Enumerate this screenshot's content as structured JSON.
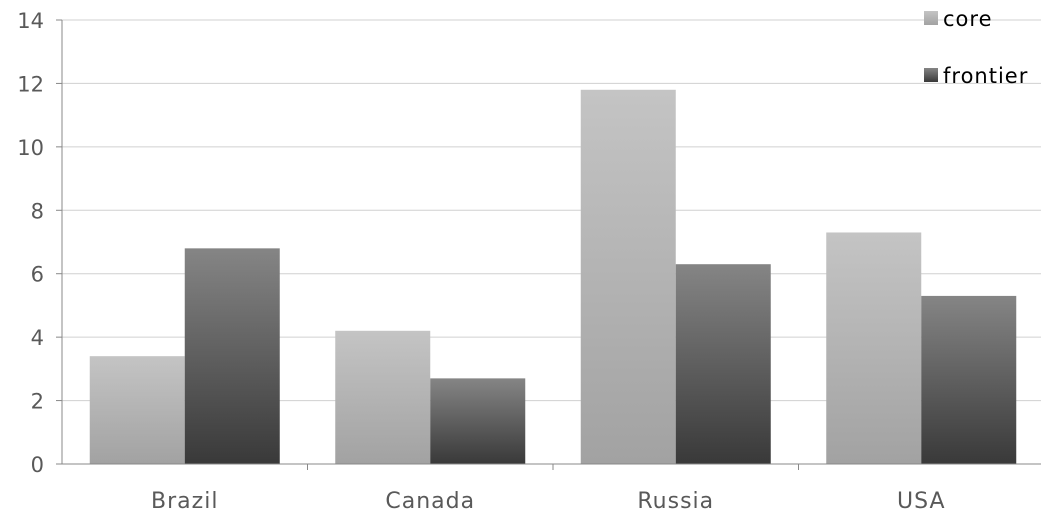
{
  "chart_data": {
    "type": "bar",
    "categories": [
      "Brazil",
      "Canada",
      "Russia",
      "USA"
    ],
    "series": [
      {
        "name": "core",
        "values": [
          3.4,
          4.2,
          11.8,
          7.3
        ],
        "color": "#b3b3b3"
      },
      {
        "name": "frontier",
        "values": [
          6.8,
          2.7,
          6.3,
          5.3
        ],
        "color": "#595959"
      }
    ],
    "ylim": [
      0,
      14
    ],
    "yticks": [
      0,
      2,
      4,
      6,
      8,
      10,
      12,
      14
    ],
    "grid": true,
    "legend": "top-right",
    "title": "",
    "xlabel": "",
    "ylabel": ""
  }
}
